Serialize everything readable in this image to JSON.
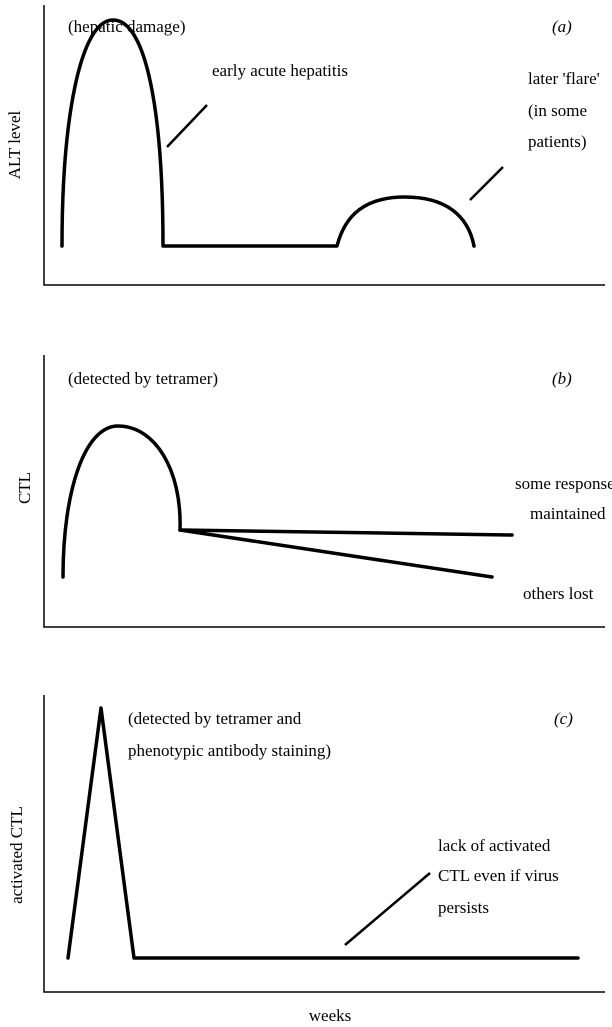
{
  "panels": [
    {
      "letter": "(a)",
      "y_label": "ALT level",
      "note": "(hepatic damage)",
      "annotations": [
        "early acute hepatitis",
        "later 'flare'",
        "(in some",
        "patients)"
      ]
    },
    {
      "letter": "(b)",
      "y_label": "CTL",
      "note": "(detected by tetramer)",
      "annotations": [
        "some responses",
        "maintained",
        "others lost"
      ]
    },
    {
      "letter": "(c)",
      "y_label": "activated CTL",
      "note": [
        "(detected by tetramer and",
        "phenotypic antibody staining)"
      ],
      "annotations": [
        "lack of activated",
        "CTL even if virus",
        "persists"
      ]
    }
  ],
  "x_label": "weeks"
}
